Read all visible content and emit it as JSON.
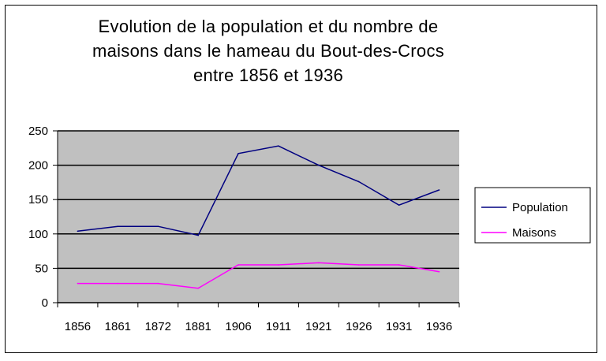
{
  "chart_data": {
    "type": "line",
    "title_lines": [
      "Evolution de la population et du nombre de",
      "maisons dans le hameau du Bout-des-Crocs",
      "entre 1856 et 1936"
    ],
    "categories": [
      "1856",
      "1861",
      "1872",
      "1881",
      "1906",
      "1911",
      "1921",
      "1926",
      "1931",
      "1936"
    ],
    "yticks": [
      "0",
      "50",
      "100",
      "150",
      "200",
      "250"
    ],
    "ylim": [
      0,
      250
    ],
    "grid": true,
    "legend_position": "right",
    "plot_background": "#c0c0c0",
    "series": [
      {
        "name": "Population",
        "color": "#000080",
        "values": [
          104,
          111,
          111,
          98,
          217,
          228,
          200,
          176,
          142,
          164
        ]
      },
      {
        "name": "Maisons",
        "color": "#ff00ff",
        "values": [
          28,
          28,
          28,
          21,
          55,
          55,
          58,
          55,
          55,
          45
        ]
      }
    ]
  }
}
